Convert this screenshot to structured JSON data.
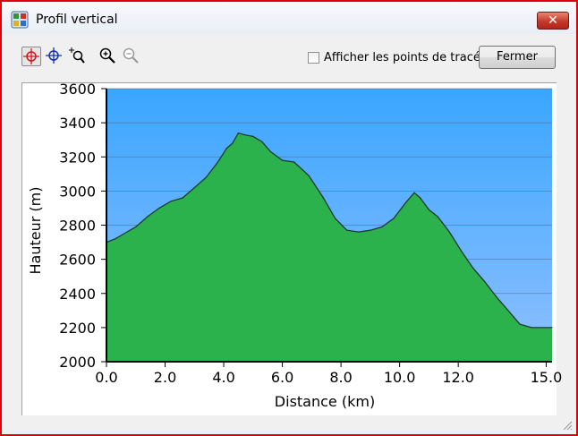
{
  "window": {
    "title": "Profil vertical",
    "close_symbol": "✕"
  },
  "toolbar": {
    "tools": [
      {
        "icon": "crosshair-red-icon",
        "active": true
      },
      {
        "icon": "crosshair-blue-icon",
        "active": false
      },
      {
        "icon": "zoom-select-icon",
        "active": false
      },
      {
        "icon": "zoom-in-icon",
        "active": false
      },
      {
        "icon": "zoom-out-icon",
        "active": false
      }
    ],
    "show_points_label": "Afficher les points de tracé",
    "show_points_checked": false,
    "close_label": "Fermer"
  },
  "colors": {
    "sky_top": "#3aa6ff",
    "sky_bottom": "#8fbfff",
    "terrain_light": "#2bb24d",
    "terrain_dark": "#137a2c",
    "frame_border": "#e0000a"
  },
  "chart_data": {
    "type": "area",
    "xlabel": "Distance   (km)",
    "ylabel": "Hauteur (m)",
    "xlim": [
      0,
      15.2
    ],
    "ylim": [
      2000,
      3600
    ],
    "xticks": [
      "0.0",
      "2.0",
      "4.0",
      "6.0",
      "8.0",
      "10.0",
      "12.0",
      "15.0"
    ],
    "xtick_values": [
      0,
      2,
      4,
      6,
      8,
      10,
      12,
      15
    ],
    "yticks": [
      "3600",
      "3400",
      "3200",
      "3000",
      "2800",
      "2600",
      "2400",
      "2200",
      "2000"
    ],
    "ytick_values": [
      3600,
      3400,
      3200,
      3000,
      2800,
      2600,
      2400,
      2200,
      2000
    ],
    "grid": true,
    "x": [
      0.0,
      0.3,
      0.6,
      1.0,
      1.4,
      1.8,
      2.2,
      2.6,
      3.0,
      3.4,
      3.8,
      4.1,
      4.3,
      4.5,
      4.7,
      5.0,
      5.3,
      5.6,
      6.0,
      6.4,
      6.9,
      7.4,
      7.8,
      8.2,
      8.6,
      9.0,
      9.4,
      9.8,
      10.2,
      10.5,
      10.7,
      11.0,
      11.3,
      11.7,
      12.1,
      12.5,
      12.9,
      13.3,
      13.7,
      14.1,
      14.5,
      14.9,
      15.2
    ],
    "y": [
      2700,
      2720,
      2750,
      2790,
      2850,
      2900,
      2940,
      2960,
      3020,
      3080,
      3170,
      3250,
      3280,
      3340,
      3330,
      3320,
      3290,
      3230,
      3180,
      3170,
      3090,
      2960,
      2840,
      2770,
      2760,
      2770,
      2790,
      2840,
      2930,
      2990,
      2960,
      2890,
      2850,
      2760,
      2650,
      2550,
      2470,
      2380,
      2300,
      2220,
      2200,
      2200,
      2200
    ]
  }
}
